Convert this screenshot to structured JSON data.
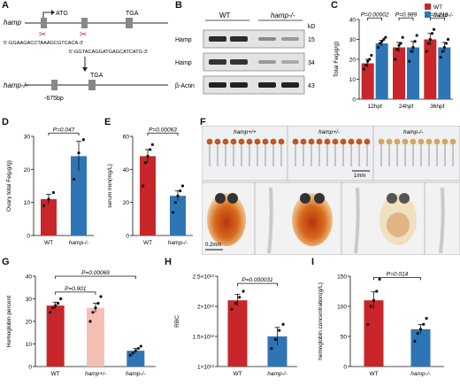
{
  "panel_labels": [
    "A",
    "B",
    "C",
    "D",
    "E",
    "F",
    "G",
    "H",
    "I"
  ],
  "colors": {
    "wt": "#c8262b",
    "het": "#f3c0b3",
    "ko": "#2e75b6",
    "black": "#111111"
  },
  "panelA": {
    "top_label": "hamp",
    "atg": "ATG",
    "tga": "TGA",
    "seq1": "5'-GGAAGACCTAAAGCGTCACA-3'",
    "seq2": "5'-GGTACAGGATGAGCATCATG-3'",
    "bottom_label": "hamp-/-",
    "deletion": "-675bp",
    "tga2": "TGA"
  },
  "panelB": {
    "wt": "WT",
    "ko": "hamp-/-",
    "kd": "kD",
    "rows": [
      {
        "label": "Hamp",
        "kd": "15"
      },
      {
        "label": "Hamp",
        "kd": "34"
      },
      {
        "label": "β-Actin",
        "kd": "43"
      }
    ]
  },
  "chart_data": [
    {
      "id": "C",
      "type": "bar",
      "ylabel": "Total Fe(μg/g)",
      "ylim": [
        0,
        40
      ],
      "yticks": [
        0,
        10,
        20,
        30,
        40
      ],
      "categories": [
        "12hpf",
        "24hpf",
        "36hpf"
      ],
      "legend": [
        {
          "name": "WT"
        },
        {
          "name": "hamp-/-"
        }
      ],
      "series": [
        {
          "name": "WT",
          "values": [
            18,
            26,
            30
          ],
          "errors": [
            2,
            2.5,
            3
          ],
          "points": [
            [
              15,
              17,
              19,
              20,
              22
            ],
            [
              20,
              25,
              27,
              28,
              31
            ],
            [
              24,
              28,
              30,
              33,
              35
            ]
          ]
        },
        {
          "name": "hamp-/-",
          "values": [
            28,
            26,
            26
          ],
          "errors": [
            1.5,
            3,
            2.5
          ],
          "points": [
            [
              26,
              28,
              29,
              30,
              31
            ],
            [
              19,
              24,
              26,
              29,
              32
            ],
            [
              21,
              24,
              26,
              28,
              30
            ]
          ]
        }
      ],
      "pvalues": [
        "P=0.00002",
        "P=0.989",
        "P=0.219"
      ]
    },
    {
      "id": "D",
      "type": "bar",
      "ylabel": "Ovary total Fe(μg/g)",
      "ylim": [
        0,
        30
      ],
      "yticks": [
        0,
        10,
        20,
        30
      ],
      "categories": [
        "WT",
        "hamp-/-"
      ],
      "values": [
        11,
        24
      ],
      "errors": [
        1.5,
        4.5
      ],
      "points": [
        [
          9,
          11,
          13
        ],
        [
          17,
          25,
          29
        ]
      ],
      "pvalue": "P=0.047"
    },
    {
      "id": "E",
      "type": "bar",
      "ylabel": "serum iron(mg/L)",
      "ylim": [
        0,
        60
      ],
      "yticks": [
        0,
        20,
        40,
        60
      ],
      "categories": [
        "WT",
        "hamp-/-"
      ],
      "values": [
        48,
        24
      ],
      "errors": [
        4,
        3
      ],
      "points": [
        [
          30,
          44,
          48,
          52,
          55
        ],
        [
          14,
          20,
          24,
          27,
          30
        ]
      ],
      "pvalue": "P=0.00063"
    },
    {
      "id": "G",
      "type": "bar",
      "ylabel": "Hemoglobin percent",
      "ylim": [
        0,
        40
      ],
      "yticks": [
        0,
        10,
        20,
        30,
        40
      ],
      "categories": [
        "WT",
        "hamp+/-",
        "hamp-/-"
      ],
      "values": [
        27,
        26,
        7
      ],
      "errors": [
        1.5,
        2,
        1
      ],
      "points": [
        [
          24,
          26,
          27,
          28,
          30
        ],
        [
          20,
          24,
          26,
          28,
          31
        ],
        [
          5,
          6,
          7,
          8,
          9
        ]
      ],
      "pvalues": [
        "P=0.901",
        "P=0.00069"
      ]
    },
    {
      "id": "H",
      "type": "bar",
      "ylabel": "RBC",
      "ylim": [
        1000000000000,
        2500000000000
      ],
      "yticks": [
        1000000000000,
        1500000000000,
        2000000000000,
        2500000000000
      ],
      "yticklabels": [
        "1×10¹²",
        "1.5×10¹²",
        "2×10¹²",
        "2.5×10¹²"
      ],
      "categories": [
        "WT",
        "hamp-/-"
      ],
      "values": [
        2100000000000,
        1500000000000
      ],
      "errors": [
        100000000000,
        150000000000
      ],
      "points": [
        [
          1950000000000,
          2050000000000,
          2150000000000,
          2250000000000
        ],
        [
          1300000000000,
          1450000000000,
          1600000000000,
          1700000000000
        ]
      ],
      "pvalue": "P=0.000031"
    },
    {
      "id": "I",
      "type": "bar",
      "ylabel": "hemoglobin concentration(g/L)",
      "ylim": [
        0,
        150
      ],
      "yticks": [
        0,
        50,
        100,
        150
      ],
      "categories": [
        "WT",
        "hamp-/-"
      ],
      "values": [
        110,
        62
      ],
      "errors": [
        14,
        8
      ],
      "points": [
        [
          70,
          100,
          110,
          125,
          145
        ],
        [
          42,
          55,
          62,
          70,
          80
        ]
      ],
      "pvalue": "P=0.014"
    }
  ],
  "panelF": {
    "headers": [
      "hamp+/+",
      "hamp+/-",
      "hamp-/-"
    ],
    "scale_top": "1mm",
    "scale_bottom": "0.2mm"
  }
}
